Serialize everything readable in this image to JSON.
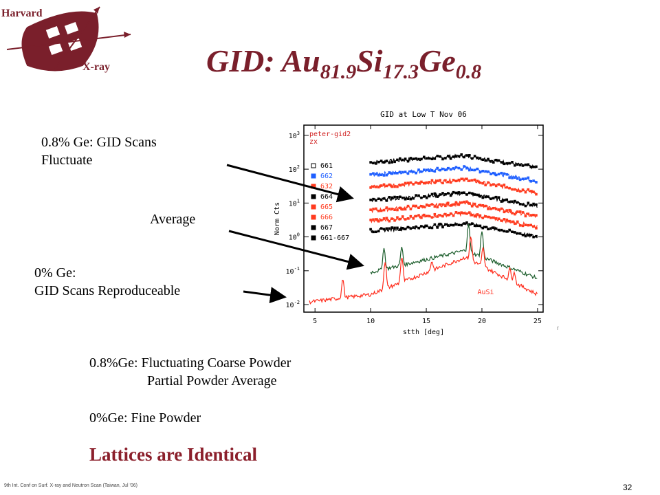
{
  "logo": {
    "top_text": "Harvard",
    "bottom_text": "X-ray",
    "color": "#7a1f2b"
  },
  "title": {
    "main": "GID: Au",
    "s1": "81.9",
    "el2": "Si",
    "s2": "17.3",
    "el3": "Ge",
    "s3": "0.8"
  },
  "labels": {
    "ge_line1": "0.8% Ge: GID Scans",
    "ge_line2": "Fluctuate",
    "average": "Average",
    "zero_line1": "0% Ge:",
    "zero_line2": "GID Scans Reproduceable"
  },
  "bullets": {
    "b1_line1": "0.8%Ge: Fluctuating Coarse Powder",
    "b1_line2": "Partial Powder Average",
    "b2": "0%Ge: Fine Powder",
    "b3": "Lattices are Identical"
  },
  "footer": "9th Int. Conf on Surf. X-ray and Neutron Scan (Taiwan, Jul '06)",
  "page_number": "32",
  "corner_mark": "r",
  "chart_data": {
    "type": "line",
    "title": "GID at Low T Nov 06",
    "annotation": "peter-gid2\nzx",
    "xlabel": "stth [deg]",
    "ylabel": "Norm Cts",
    "yscale": "log",
    "xlim": [
      4,
      25.5
    ],
    "ylim": [
      0.006,
      2000
    ],
    "x_ticks": [
      "5",
      "10",
      "15",
      "20",
      "25"
    ],
    "y_ticks": [
      "10-2",
      "10-1",
      "100",
      "101",
      "102",
      "103"
    ],
    "legend": [
      {
        "name": "661",
        "marker": "square-open",
        "color": "#000000"
      },
      {
        "name": "662",
        "marker": "triangle-up",
        "color": "#1f5fff"
      },
      {
        "name": "632",
        "marker": "triangle-down",
        "color": "#ff3b1f"
      },
      {
        "name": "664",
        "marker": "square",
        "color": "#000000"
      },
      {
        "name": "665",
        "marker": "x",
        "color": "#ff3b1f"
      },
      {
        "name": "666",
        "marker": "point",
        "color": "#ff3b1f"
      },
      {
        "name": "667",
        "marker": "point",
        "color": "#000000"
      },
      {
        "name": "661-667",
        "marker": "x",
        "color": "#000000"
      }
    ],
    "series": [
      {
        "name": "661",
        "color": "#000000",
        "x": [
          10,
          18.5,
          25
        ],
        "y": [
          160,
          250,
          110
        ]
      },
      {
        "name": "662",
        "color": "#1f5fff",
        "x": [
          10,
          18.5,
          25
        ],
        "y": [
          70,
          110,
          45
        ]
      },
      {
        "name": "632",
        "color": "#ff3b1f",
        "x": [
          10,
          18.5,
          25
        ],
        "y": [
          30,
          50,
          20
        ]
      },
      {
        "name": "664",
        "color": "#000000",
        "x": [
          10,
          18.5,
          25
        ],
        "y": [
          12,
          20,
          8
        ]
      },
      {
        "name": "665",
        "color": "#ff3b1f",
        "x": [
          10,
          18.5,
          25
        ],
        "y": [
          6,
          10,
          4
        ]
      },
      {
        "name": "666",
        "color": "#ff3b1f",
        "x": [
          10,
          18.5,
          25
        ],
        "y": [
          3,
          5,
          2
        ]
      },
      {
        "name": "667",
        "color": "#000000",
        "x": [
          10,
          18.5,
          25
        ],
        "y": [
          1.5,
          2.5,
          1
        ]
      },
      {
        "name": "661-667",
        "color": "#1a5c2a",
        "x": [
          10,
          18.5,
          25
        ],
        "y": [
          0.09,
          0.4,
          0.06
        ],
        "peaks": [
          [
            11.2,
            0.35
          ],
          [
            12.8,
            0.35
          ],
          [
            18.8,
            2.0
          ],
          [
            20.0,
            1.2
          ]
        ]
      },
      {
        "name": "AuSi",
        "color": "#ff2a1a",
        "x": [
          4.5,
          10,
          18.5,
          25
        ],
        "y": [
          0.012,
          0.02,
          0.25,
          0.02
        ],
        "peaks": [
          [
            7.5,
            0.04
          ],
          [
            11.3,
            0.15
          ],
          [
            12.8,
            0.2
          ],
          [
            15.5,
            0.09
          ],
          [
            19.0,
            0.8
          ],
          [
            20.1,
            0.35
          ],
          [
            22.5,
            0.07
          ],
          [
            22.9,
            0.05
          ]
        ]
      }
    ]
  }
}
